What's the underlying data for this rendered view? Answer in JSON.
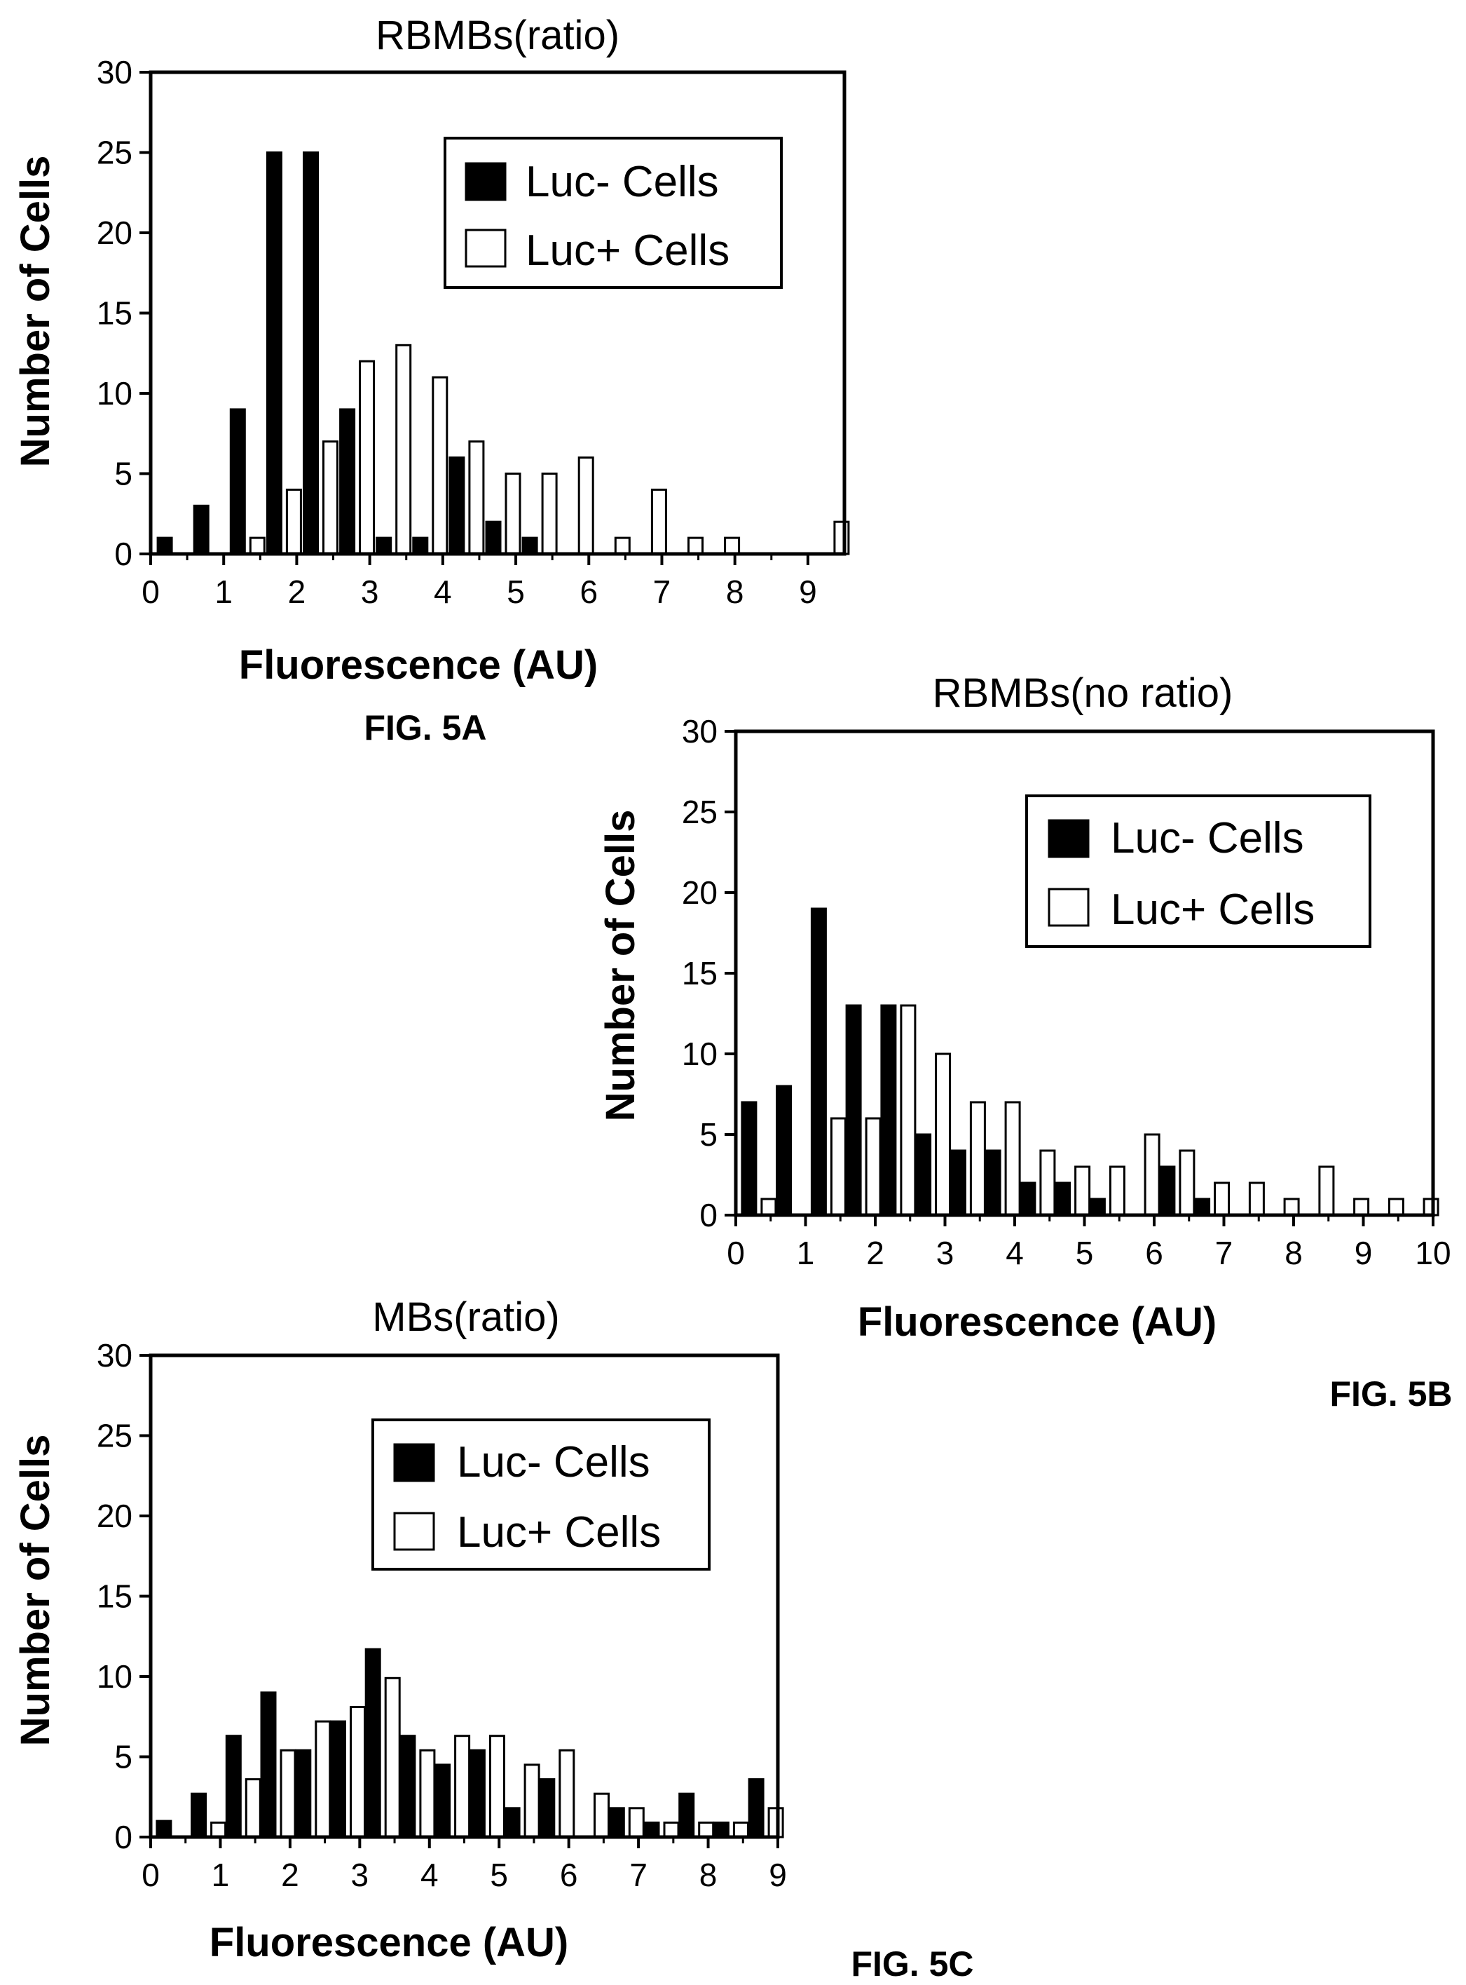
{
  "chart_data": [
    {
      "type": "bar",
      "title": "RBMBs(ratio)",
      "xlabel": "Fluorescence (AU)",
      "ylabel": "Number of Cells",
      "figure_label": "FIG. 5A",
      "xlim": [
        0,
        9.5
      ],
      "xticks": [
        0,
        1,
        2,
        3,
        4,
        5,
        6,
        7,
        8,
        9
      ],
      "ylim": [
        0,
        30
      ],
      "yticks": [
        0,
        5,
        10,
        15,
        20,
        25,
        30
      ],
      "x": [
        0.25,
        0.75,
        1.25,
        1.75,
        2.25,
        2.75,
        3.25,
        3.75,
        4.25,
        4.75,
        5.25,
        5.75,
        6.25,
        6.75,
        7.25,
        7.75,
        8.25,
        8.75,
        9.25
      ],
      "series": [
        {
          "name": "Luc- Cells",
          "fill": "#000000",
          "values": [
            1,
            3,
            9,
            25,
            25,
            9,
            1,
            1,
            6,
            2,
            1,
            0,
            0,
            0,
            0,
            0,
            0,
            0,
            0
          ]
        },
        {
          "name": "Luc+ Cells",
          "fill": "#ffffff",
          "values": [
            0,
            0,
            1,
            4,
            7,
            12,
            13,
            11,
            7,
            5,
            5,
            6,
            1,
            4,
            1,
            1,
            0,
            0,
            2
          ]
        }
      ],
      "legend": {
        "position": "top-right"
      },
      "grid": false
    },
    {
      "type": "bar",
      "title": "RBMBs(no ratio)",
      "xlabel": "Fluorescence (AU)",
      "ylabel": "Number of Cells",
      "figure_label": "FIG. 5B",
      "xlim": [
        0,
        10
      ],
      "xticks": [
        0,
        1,
        2,
        3,
        4,
        5,
        6,
        7,
        8,
        9,
        10
      ],
      "ylim": [
        0,
        30
      ],
      "yticks": [
        0,
        5,
        10,
        15,
        20,
        25,
        30
      ],
      "x": [
        0.25,
        0.75,
        1.25,
        1.75,
        2.25,
        2.75,
        3.25,
        3.75,
        4.25,
        4.75,
        5.25,
        5.75,
        6.25,
        6.75,
        7.25,
        7.75,
        8.25,
        8.75,
        9.25,
        9.75
      ],
      "series": [
        {
          "name": "Luc- Cells",
          "fill": "#000000",
          "values": [
            7,
            8,
            19,
            13,
            13,
            5,
            4,
            4,
            2,
            2,
            1,
            0,
            3,
            1,
            0,
            0,
            0,
            0,
            0,
            0
          ]
        },
        {
          "name": "Luc+ Cells",
          "fill": "#ffffff",
          "values": [
            1,
            0,
            6,
            6,
            13,
            10,
            7,
            7,
            4,
            3,
            3,
            5,
            4,
            2,
            2,
            1,
            3,
            1,
            1,
            1
          ]
        }
      ],
      "legend": {
        "position": "top-right"
      },
      "grid": false
    },
    {
      "type": "bar",
      "title": "MBs(ratio)",
      "xlabel": "Fluorescence (AU)",
      "ylabel": "Number of Cells",
      "figure_label": "FIG. 5C",
      "xlim": [
        0,
        9
      ],
      "xticks": [
        0,
        1,
        2,
        3,
        4,
        5,
        6,
        7,
        8,
        9
      ],
      "ylim": [
        0,
        30
      ],
      "yticks": [
        0,
        5,
        10,
        15,
        20,
        25,
        30
      ],
      "x": [
        0.25,
        0.75,
        1.25,
        1.75,
        2.25,
        2.75,
        3.25,
        3.75,
        4.25,
        4.75,
        5.25,
        5.75,
        6.25,
        6.75,
        7.25,
        7.75,
        8.25,
        8.75
      ],
      "series": [
        {
          "name": "Luc- Cells",
          "fill": "#000000",
          "values": [
            1,
            2.7,
            6.3,
            9,
            5.4,
            7.2,
            11.7,
            6.3,
            4.5,
            5.4,
            1.8,
            3.6,
            0,
            1.8,
            0.9,
            2.7,
            0.9,
            3.6
          ]
        },
        {
          "name": "Luc+ Cells",
          "fill": "#ffffff",
          "values": [
            0,
            0.9,
            3.6,
            5.4,
            7.2,
            8.1,
            9.9,
            5.4,
            6.3,
            6.3,
            4.5,
            5.4,
            2.7,
            1.8,
            0.9,
            0.9,
            0.9,
            1.8
          ]
        }
      ],
      "legend": {
        "position": "top-right"
      },
      "grid": false
    }
  ]
}
